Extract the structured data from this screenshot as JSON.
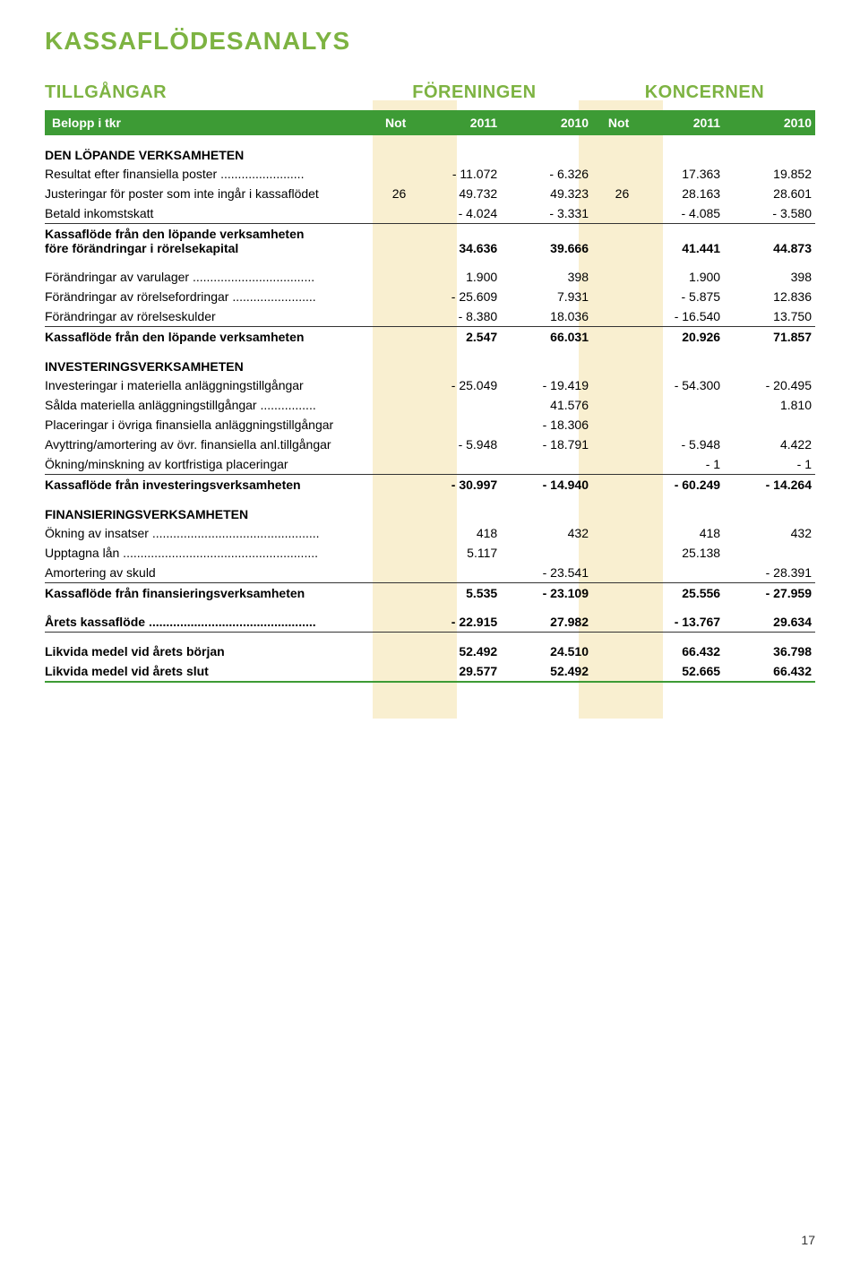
{
  "page_number": "17",
  "title": "KASSAFLÖDESANALYS",
  "colors": {
    "accent_green": "#7db342",
    "header_bg": "#3d9b35",
    "header_text": "#ffffff",
    "highlight": "rgba(238, 210, 120, 0.35)",
    "text": "#333333",
    "background": "#ffffff"
  },
  "section_labels": {
    "left": "TILLGÅNGAR",
    "mid": "FÖRENINGEN",
    "right": "KONCERNEN"
  },
  "headers": {
    "label": "Belopp i tkr",
    "not1": "Not",
    "f1": "2011",
    "f2": "2010",
    "not2": "Not",
    "k1": "2011",
    "k2": "2010"
  },
  "rows": [
    {
      "type": "section",
      "label": "DEN LÖPANDE VERKSAMHETEN"
    },
    {
      "type": "data",
      "label": "Resultat efter finansiella poster ........................",
      "not1": "",
      "f1": "- 11.072",
      "f2": "-  6.326",
      "not2": "",
      "k1": "17.363",
      "k2": "19.852"
    },
    {
      "type": "data",
      "label": "Justeringar för poster som inte ingår i kassaflödet",
      "not1": "26",
      "f1": "49.732",
      "f2": "49.323",
      "not2": "26",
      "k1": "28.163",
      "k2": "28.601"
    },
    {
      "type": "data",
      "label": "Betald inkomstskatt",
      "not1": "",
      "f1": "- 4.024",
      "f2": "-  3.331",
      "not2": "",
      "k1": "-  4.085",
      "k2": "-  3.580",
      "cls": "underline"
    },
    {
      "type": "data",
      "label": "Kassaflöde från den löpande verksamheten\nföre förändringar i rörelsekapital",
      "not1": "",
      "f1": "34.636",
      "f2": "39.666",
      "not2": "",
      "k1": "41.441",
      "k2": "44.873",
      "cls": "bold",
      "multi": true
    },
    {
      "type": "spacer"
    },
    {
      "type": "data",
      "label": "Förändringar av varulager ...................................",
      "not1": "",
      "f1": "1.900",
      "f2": "398",
      "not2": "",
      "k1": "1.900",
      "k2": "398"
    },
    {
      "type": "data",
      "label": "Förändringar av rörelsefordringar ........................",
      "not1": "",
      "f1": "- 25.609",
      "f2": "7.931",
      "not2": "",
      "k1": "-  5.875",
      "k2": "12.836"
    },
    {
      "type": "data",
      "label": "Förändringar av rörelseskulder",
      "not1": "",
      "f1": "-  8.380",
      "f2": "18.036",
      "not2": "",
      "k1": "- 16.540",
      "k2": "13.750",
      "cls": "underline"
    },
    {
      "type": "data",
      "label": "Kassaflöde från den löpande verksamheten",
      "not1": "",
      "f1": "2.547",
      "f2": "66.031",
      "not2": "",
      "k1": "20.926",
      "k2": "71.857",
      "cls": "bold"
    },
    {
      "type": "section",
      "label": "INVESTERINGSVERKSAMHETEN"
    },
    {
      "type": "data",
      "label": "Investeringar i materiella anläggningstillgångar",
      "not1": "",
      "f1": "- 25.049",
      "f2": "- 19.419",
      "not2": "",
      "k1": "- 54.300",
      "k2": "- 20.495"
    },
    {
      "type": "data",
      "label": "Sålda materiella anläggningstillgångar ................",
      "not1": "",
      "f1": "",
      "f2": "41.576",
      "not2": "",
      "k1": "",
      "k2": "1.810"
    },
    {
      "type": "data",
      "label": "Placeringar i övriga finansiella anläggningstillgångar",
      "not1": "",
      "f1": "",
      "f2": "- 18.306",
      "not2": "",
      "k1": "",
      "k2": ""
    },
    {
      "type": "data",
      "label": "Avyttring/amortering av övr. finansiella anl.tillgångar",
      "not1": "",
      "f1": "-  5.948",
      "f2": "- 18.791",
      "not2": "",
      "k1": "-  5.948",
      "k2": "4.422"
    },
    {
      "type": "data",
      "label": "Ökning/minskning av kortfristiga placeringar",
      "not1": "",
      "f1": "",
      "f2": "",
      "not2": "",
      "k1": "-    1",
      "k2": "-    1",
      "cls": "underline"
    },
    {
      "type": "data",
      "label": "Kassaflöde från investeringsverksamheten",
      "not1": "",
      "f1": "- 30.997",
      "f2": "- 14.940",
      "not2": "",
      "k1": "- 60.249",
      "k2": "- 14.264",
      "cls": "bold"
    },
    {
      "type": "section",
      "label": "FINANSIERINGSVERKSAMHETEN"
    },
    {
      "type": "data",
      "label": "Ökning av insatser ................................................",
      "not1": "",
      "f1": "418",
      "f2": "432",
      "not2": "",
      "k1": "418",
      "k2": "432"
    },
    {
      "type": "data",
      "label": "Upptagna lån ........................................................",
      "not1": "",
      "f1": "5.117",
      "f2": "",
      "not2": "",
      "k1": "25.138",
      "k2": ""
    },
    {
      "type": "data",
      "label": "Amortering av skuld",
      "not1": "",
      "f1": "",
      "f2": "- 23.541",
      "not2": "",
      "k1": "",
      "k2": "- 28.391",
      "cls": "underline"
    },
    {
      "type": "data",
      "label": "Kassaflöde från finansieringsverksamheten",
      "not1": "",
      "f1": "5.535",
      "f2": "- 23.109",
      "not2": "",
      "k1": "25.556",
      "k2": "- 27.959",
      "cls": "bold"
    },
    {
      "type": "spacer"
    },
    {
      "type": "data",
      "label": "Årets kassaflöde ................................................",
      "not1": "",
      "f1": "- 22.915",
      "f2": "27.982",
      "not2": "",
      "k1": "- 13.767",
      "k2": "29.634",
      "cls": "bold underline"
    },
    {
      "type": "spacer"
    },
    {
      "type": "data",
      "label": "Likvida medel vid årets början",
      "not1": "",
      "f1": "52.492",
      "f2": "24.510",
      "not2": "",
      "k1": "66.432",
      "k2": "36.798",
      "cls": "bold"
    },
    {
      "type": "data",
      "label": "Likvida medel vid årets slut",
      "not1": "",
      "f1": "29.577",
      "f2": "52.492",
      "not2": "",
      "k1": "52.665",
      "k2": "66.432",
      "cls": "bold bottom-accent"
    }
  ]
}
